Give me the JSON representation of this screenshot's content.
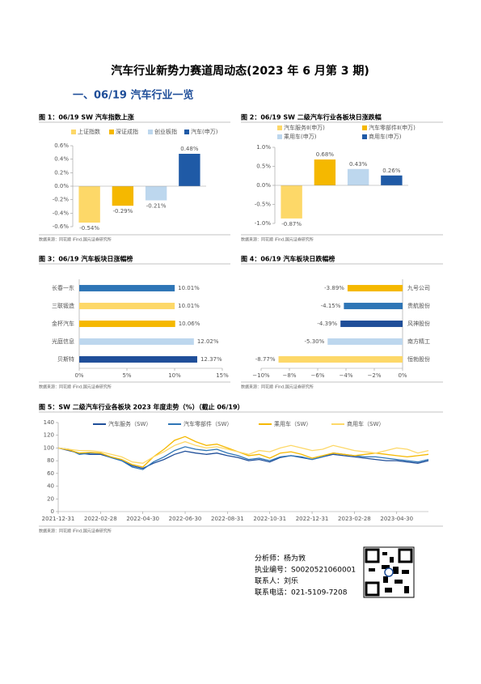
{
  "header": {
    "title": "汽车行业新势力赛道周动态(2023 年 6 月第 3 期)",
    "section": "一、06/19 汽车行业一览"
  },
  "chart_data": [
    {
      "type": "bar",
      "title": "图 1：06/19 SW 汽车指数上涨",
      "categories": [
        "上证指数",
        "深证成指",
        "创业板指",
        "汽车(申万)"
      ],
      "values": [
        -0.54,
        -0.29,
        -0.21,
        0.48
      ],
      "value_labels": [
        "-0.54%",
        "-0.29%",
        "-0.21%",
        "0.48%"
      ],
      "colors": [
        "#fdd868",
        "#f5b800",
        "#bdd7ee",
        "#1f5aa6"
      ],
      "ylim": [
        -0.6,
        0.6
      ],
      "yticks": [
        {
          "value": -0.6,
          "label": "-0.6%"
        },
        {
          "value": -0.4,
          "label": "-0.4%"
        },
        {
          "value": -0.2,
          "label": "-0.2%"
        },
        {
          "value": 0,
          "label": "0.0%"
        },
        {
          "value": 0.2,
          "label": "0.2%"
        },
        {
          "value": 0.4,
          "label": "0.4%"
        },
        {
          "value": 0.6,
          "label": "0.6%"
        }
      ],
      "grid": false,
      "legend": "top",
      "source": "数据来源：同花顺 iFind,国元证券研究所"
    },
    {
      "type": "bar",
      "title": "图 2：06/19 SW 二级汽车行业各板块日涨跌幅",
      "categories": [
        "汽车服务Ⅱ(申万)",
        "汽车零部件Ⅱ(申万)",
        "乘用车(申万)",
        "商用车(申万)"
      ],
      "values": [
        -0.87,
        0.68,
        0.43,
        0.26
      ],
      "value_labels": [
        "-0.87%",
        "0.68%",
        "0.43%",
        "0.26%"
      ],
      "colors": [
        "#fdd868",
        "#f5b800",
        "#bdd7ee",
        "#1f5aa6"
      ],
      "ylim": [
        -1,
        1
      ],
      "yticks": [
        {
          "value": -1,
          "label": "-1.0%"
        },
        {
          "value": -0.5,
          "label": "-0.5%"
        },
        {
          "value": 0,
          "label": "0.0%"
        },
        {
          "value": 0.5,
          "label": "0.5%"
        },
        {
          "value": 1,
          "label": "1.0%"
        }
      ],
      "grid": false,
      "legend": "top",
      "source": "数据来源：同花顺 iFind,国元证券研究所"
    },
    {
      "type": "bar",
      "horizontal": true,
      "title": "图 3：06/19 汽车板块日涨幅榜",
      "categories": [
        "长春一东",
        "三联锻造",
        "金杯汽车",
        "光庭信息",
        "贝斯特"
      ],
      "values": [
        10.01,
        10.01,
        10.06,
        12.02,
        12.37
      ],
      "value_labels": [
        "10.01%",
        "10.01%",
        "10.06%",
        "12.02%",
        "12.37%"
      ],
      "colors": [
        "#2e75b6",
        "#fdd868",
        "#f5b800",
        "#bdd7ee",
        "#1f4e99"
      ],
      "xlim": [
        0,
        15
      ],
      "xticks": [
        {
          "value": 0,
          "label": "0%"
        },
        {
          "value": 5,
          "label": "5%"
        },
        {
          "value": 10,
          "label": "10%"
        },
        {
          "value": 15,
          "label": "15%"
        }
      ],
      "grid": false,
      "source": "数据来源：同花顺 iFind,国元证券研究所"
    },
    {
      "type": "bar",
      "horizontal": true,
      "title": "图 4：06/19 汽车板块日跌幅榜",
      "categories": [
        "九号公司",
        "贵航股份",
        "风神股份",
        "南方精工",
        "恒勃股份"
      ],
      "values": [
        -3.89,
        -4.15,
        -4.39,
        -5.3,
        -8.77
      ],
      "value_labels": [
        "-3.89%",
        "-4.15%",
        "-4.39%",
        "-5.30%",
        "-8.77%"
      ],
      "colors": [
        "#f5b800",
        "#2e75b6",
        "#1f4e99",
        "#bdd7ee",
        "#fdd868"
      ],
      "xlim": [
        -10,
        0
      ],
      "xticks": [
        {
          "value": -10,
          "label": "−10%"
        },
        {
          "value": -8,
          "label": "−8%"
        },
        {
          "value": -6,
          "label": "−6%"
        },
        {
          "value": -4,
          "label": "−4%"
        },
        {
          "value": -2,
          "label": "−2%"
        },
        {
          "value": 0,
          "label": "0%"
        }
      ],
      "grid": false,
      "source": "数据来源：同花顺 iFind,国元证券研究所"
    },
    {
      "type": "line",
      "title": "图 5：SW 二级汽车行业各板块 2023 年度走势（%）（截止 06/19）",
      "x": [
        "2021-12-31",
        "2022-01-14",
        "2022-01-28",
        "2022-02-14",
        "2022-02-28",
        "2022-03-15",
        "2022-03-31",
        "2022-04-15",
        "2022-04-30",
        "2022-05-15",
        "2022-05-31",
        "2022-06-15",
        "2022-06-30",
        "2022-07-15",
        "2022-07-31",
        "2022-08-15",
        "2022-08-31",
        "2022-09-15",
        "2022-09-30",
        "2022-10-15",
        "2022-10-31",
        "2022-11-15",
        "2022-11-30",
        "2022-12-15",
        "2022-12-31",
        "2023-01-15",
        "2023-01-31",
        "2023-02-15",
        "2023-02-28",
        "2023-03-15",
        "2023-03-31",
        "2023-04-15",
        "2023-04-30",
        "2023-05-15",
        "2023-05-31",
        "2023-06-19"
      ],
      "xticks": [
        "2021-12-31",
        "2022-02-28",
        "2022-04-30",
        "2022-06-30",
        "2022-08-31",
        "2022-10-31",
        "2022-12-31",
        "2023-02-28",
        "2023-04-30"
      ],
      "series": [
        {
          "name": "汽车服务（SW）",
          "color": "#1f4e99",
          "values": [
            100,
            96,
            92,
            90,
            90,
            85,
            80,
            72,
            68,
            76,
            82,
            90,
            95,
            92,
            90,
            92,
            88,
            85,
            80,
            82,
            78,
            85,
            88,
            85,
            82,
            86,
            90,
            88,
            86,
            84,
            82,
            80,
            80,
            78,
            76,
            80
          ]
        },
        {
          "name": "汽车零部件（SW）",
          "color": "#2e75b6",
          "values": [
            100,
            98,
            90,
            92,
            92,
            85,
            80,
            70,
            66,
            78,
            86,
            96,
            102,
            98,
            96,
            98,
            92,
            88,
            82,
            84,
            80,
            86,
            88,
            86,
            82,
            86,
            92,
            90,
            88,
            86,
            86,
            84,
            82,
            80,
            78,
            82
          ]
        },
        {
          "name": "乘用车（SW）",
          "color": "#f5b800",
          "values": [
            100,
            97,
            92,
            93,
            92,
            86,
            82,
            74,
            70,
            86,
            98,
            112,
            118,
            110,
            104,
            106,
            100,
            94,
            88,
            90,
            84,
            92,
            94,
            90,
            84,
            88,
            92,
            90,
            88,
            90,
            92,
            90,
            88,
            86,
            88,
            90
          ]
        },
        {
          "name": "商用车（SW）",
          "color": "#fdd868",
          "values": [
            100,
            98,
            96,
            96,
            94,
            90,
            86,
            78,
            76,
            86,
            94,
            104,
            110,
            104,
            100,
            102,
            98,
            94,
            90,
            96,
            94,
            100,
            104,
            100,
            96,
            98,
            104,
            100,
            96,
            94,
            92,
            96,
            100,
            98,
            92,
            96
          ]
        }
      ],
      "ylim": [
        0,
        140
      ],
      "yticks": [
        0,
        20,
        40,
        60,
        80,
        100,
        120,
        140
      ],
      "grid": false,
      "legend": "top",
      "source": "数据来源：同花顺 iFind,国元证券研究所"
    }
  ],
  "footer": {
    "analyst": "分析师：杨为敩",
    "license": "执业编号：S0020521060001",
    "contact": "联系人：刘乐",
    "phone": "联系电话：021-5109-7208"
  }
}
